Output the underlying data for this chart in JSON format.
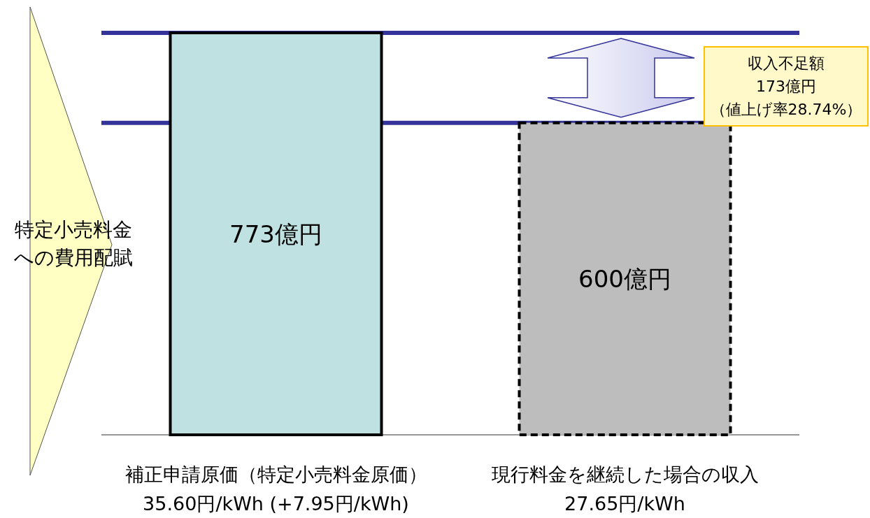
{
  "chart_data": {
    "type": "bar",
    "categories": [
      "補正申請原価（特定小売料金原価）\n35.60円/kWh (+7.95円/kWh)",
      "現行料金を継続した場合の収入\n27.65円/kWh"
    ],
    "series": [
      {
        "color": "#bfe1e1",
        "line_style": "solid",
        "values": [
          773,
          null
        ],
        "value_labels": [
          "773億円",
          null
        ]
      },
      {
        "color": "#bdbdbd",
        "line_style": "dashed",
        "values": [
          null,
          600
        ],
        "value_labels": [
          null,
          "600億円"
        ]
      }
    ],
    "ref_lines": [
      {
        "axis": "y",
        "value": 773,
        "color": "#333399"
      },
      {
        "axis": "y",
        "value": 600,
        "color": "#333399"
      }
    ],
    "annotations": [
      "特定小売料金",
      "への費用配賦",
      "収入不足額",
      "173億円",
      "（値上げ率28.74%）"
    ]
  }
}
